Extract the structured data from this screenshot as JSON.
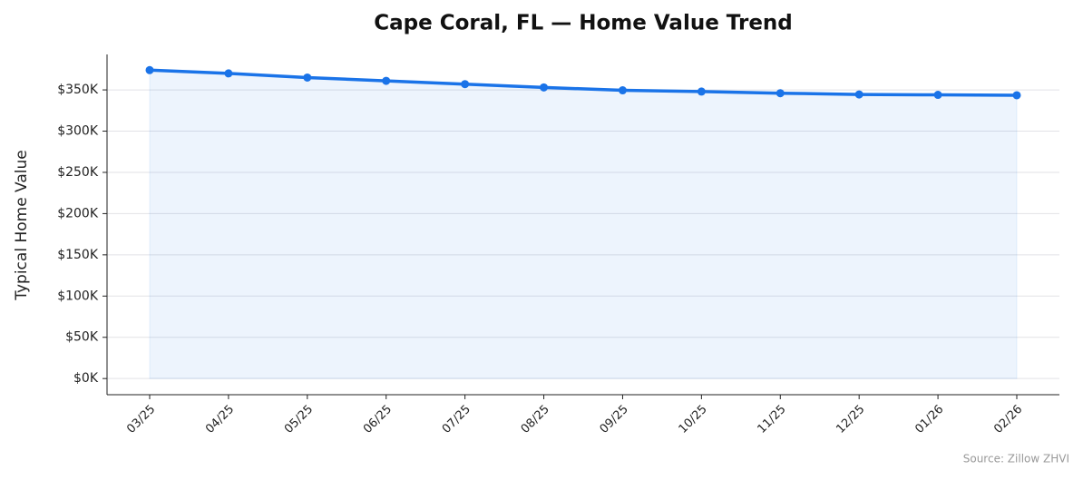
{
  "chart_data": {
    "type": "line",
    "title": "Cape Coral, FL — Home Value Trend",
    "y_label": "Typical Home Value",
    "source": "Source: Zillow ZHVI",
    "categories": [
      "03/25",
      "04/25",
      "05/25",
      "06/25",
      "07/25",
      "08/25",
      "09/25",
      "10/25",
      "11/25",
      "12/25",
      "01/26",
      "02/26"
    ],
    "series": [
      {
        "name": "Typical Home Value",
        "color": "#1a73e8",
        "values": [
          374000,
          370000,
          365000,
          361000,
          357000,
          353000,
          349500,
          348000,
          346000,
          344500,
          344000,
          343500
        ]
      }
    ],
    "area": true,
    "ylim": [
      -19600,
      393000
    ],
    "yticks": [
      {
        "value": 0,
        "label": "$0K"
      },
      {
        "value": 50000,
        "label": "$50K"
      },
      {
        "value": 100000,
        "label": "$100K"
      },
      {
        "value": 150000,
        "label": "$150K"
      },
      {
        "value": 200000,
        "label": "$200K"
      },
      {
        "value": 250000,
        "label": "$250K"
      },
      {
        "value": 300000,
        "label": "$300K"
      },
      {
        "value": 350000,
        "label": "$350K"
      }
    ],
    "grid": true
  }
}
